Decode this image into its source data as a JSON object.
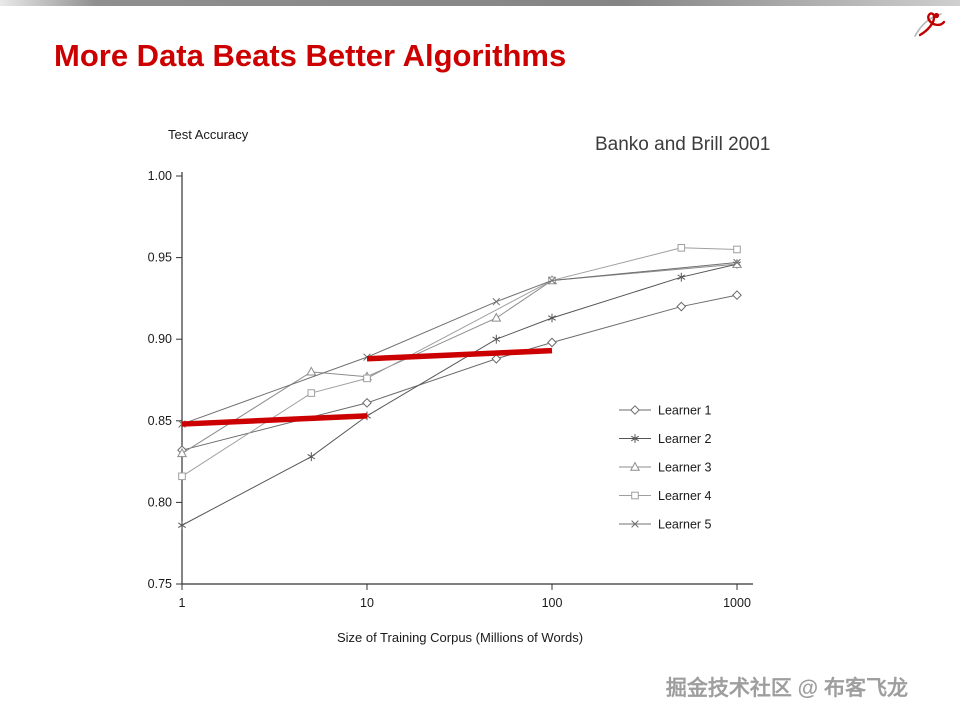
{
  "slide": {
    "title": "More Data Beats Better Algorithms",
    "watermark": "掘金技术社区 @ 布客飞龙",
    "title_color": "#cc0000",
    "logo_icon": "red-swirl-logo"
  },
  "chart_data": {
    "type": "line",
    "title": "",
    "ylabel": "Test Accuracy",
    "xlabel": "Size of Training Corpus (Millions of Words)",
    "annotation": "Banko and Brill 2001",
    "x_scale": "log",
    "xlim": [
      1,
      1000
    ],
    "ylim": [
      0.75,
      1.0
    ],
    "x_ticks": [
      1,
      10,
      100,
      1000
    ],
    "y_ticks": [
      0.75,
      0.8,
      0.85,
      0.9,
      0.95,
      1.0
    ],
    "grid": false,
    "legend_position": "inside-lower-right",
    "emphasis_color": "#cc0000",
    "series": [
      {
        "name": "Learner 1",
        "marker": "diamond",
        "color": "#6b6b6b",
        "points": [
          [
            1,
            0.832
          ],
          [
            10,
            0.861
          ],
          [
            50,
            0.888
          ],
          [
            100,
            0.898
          ],
          [
            500,
            0.92
          ],
          [
            1000,
            0.927
          ]
        ]
      },
      {
        "name": "Learner 2",
        "marker": "asterisk",
        "color": "#565656",
        "points": [
          [
            1,
            0.786
          ],
          [
            5,
            0.828
          ],
          [
            10,
            0.853
          ],
          [
            50,
            0.9
          ],
          [
            100,
            0.913
          ],
          [
            500,
            0.938
          ],
          [
            1000,
            0.946
          ]
        ]
      },
      {
        "name": "Learner 3",
        "marker": "triangle",
        "color": "#8c8c8c",
        "points": [
          [
            1,
            0.83
          ],
          [
            5,
            0.88
          ],
          [
            10,
            0.877
          ],
          [
            50,
            0.913
          ],
          [
            100,
            0.936
          ],
          [
            1000,
            0.946
          ]
        ]
      },
      {
        "name": "Learner 4",
        "marker": "square",
        "color": "#9f9f9f",
        "points": [
          [
            1,
            0.816
          ],
          [
            5,
            0.867
          ],
          [
            10,
            0.876
          ],
          [
            100,
            0.936
          ],
          [
            500,
            0.956
          ],
          [
            1000,
            0.955
          ]
        ]
      },
      {
        "name": "Learner 5",
        "marker": "x",
        "color": "#707070",
        "points": [
          [
            1,
            0.848
          ],
          [
            10,
            0.889
          ],
          [
            50,
            0.923
          ],
          [
            100,
            0.936
          ],
          [
            1000,
            0.947
          ]
        ]
      }
    ],
    "emphasis_lines": [
      {
        "from": [
          1,
          0.848
        ],
        "to": [
          10,
          0.853
        ],
        "color": "#cc0000"
      },
      {
        "from": [
          10,
          0.888
        ],
        "to": [
          100,
          0.893
        ],
        "color": "#cc0000"
      }
    ]
  }
}
